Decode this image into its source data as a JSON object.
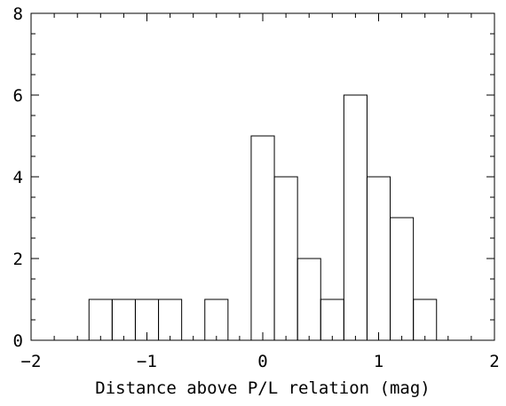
{
  "chart_data": {
    "type": "bar",
    "subtype": "step-histogram",
    "title": "",
    "xlabel": "Distance above P/L relation (mag)",
    "ylabel": "",
    "xlim": [
      -2,
      2
    ],
    "ylim": [
      0,
      8
    ],
    "grid": false,
    "legend": "none",
    "x_ticks": [
      -2,
      -1,
      0,
      1,
      2
    ],
    "x_tick_labels": [
      "−2",
      "−1",
      "0",
      "1",
      "2"
    ],
    "x_minor_step": 0.2,
    "y_ticks": [
      0,
      2,
      4,
      6,
      8
    ],
    "y_tick_labels": [
      "0",
      "2",
      "4",
      "6",
      "8"
    ],
    "y_minor_step": 0.5,
    "bin_width": 0.2,
    "bins": [
      {
        "start": -1.5,
        "end": -1.3,
        "count": 1
      },
      {
        "start": -1.3,
        "end": -1.1,
        "count": 1
      },
      {
        "start": -1.1,
        "end": -0.9,
        "count": 1
      },
      {
        "start": -0.9,
        "end": -0.7,
        "count": 1
      },
      {
        "start": -0.7,
        "end": -0.5,
        "count": 0
      },
      {
        "start": -0.5,
        "end": -0.3,
        "count": 1
      },
      {
        "start": -0.3,
        "end": -0.1,
        "count": 0
      },
      {
        "start": -0.1,
        "end": 0.1,
        "count": 5
      },
      {
        "start": 0.1,
        "end": 0.3,
        "count": 4
      },
      {
        "start": 0.3,
        "end": 0.5,
        "count": 2
      },
      {
        "start": 0.5,
        "end": 0.7,
        "count": 1
      },
      {
        "start": 0.7,
        "end": 0.9,
        "count": 6
      },
      {
        "start": 0.9,
        "end": 1.1,
        "count": 4
      },
      {
        "start": 1.1,
        "end": 1.3,
        "count": 3
      },
      {
        "start": 1.3,
        "end": 1.5,
        "count": 1
      }
    ],
    "colors": {
      "line": "#000000",
      "background": "#ffffff"
    }
  }
}
